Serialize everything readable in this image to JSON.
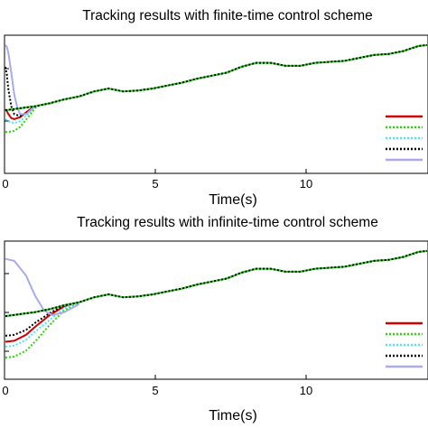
{
  "chart_data": [
    {
      "type": "line",
      "title": "Tracking results with finite-time control scheme",
      "xlabel": "Time(s)",
      "ylabel": "",
      "xlim": [
        0,
        14.3
      ],
      "ylim": [
        -0.3,
        1.1
      ],
      "xticks": [
        "0",
        "5",
        "10"
      ],
      "grid": false,
      "legend": "right",
      "reference": {
        "x": [
          0,
          0.5,
          1,
          1.5,
          2,
          2.5,
          3,
          3.5,
          4,
          4.5,
          5,
          5.5,
          6,
          6.5,
          7,
          7.5,
          8,
          8.5,
          9,
          9.5,
          10,
          10.5,
          11,
          11.5,
          12,
          12.5,
          13,
          13.5,
          14,
          14.3
        ],
        "y": [
          0.34,
          0.36,
          0.38,
          0.41,
          0.45,
          0.48,
          0.53,
          0.56,
          0.53,
          0.54,
          0.56,
          0.59,
          0.62,
          0.66,
          0.69,
          0.72,
          0.78,
          0.82,
          0.82,
          0.79,
          0.79,
          0.82,
          0.83,
          0.84,
          0.87,
          0.9,
          0.91,
          0.94,
          0.99,
          1.0
        ]
      },
      "series": [
        {
          "color": "#d40000",
          "dash": "solid",
          "x": [
            0,
            0.05,
            0.1,
            0.2,
            0.3,
            0.5,
            0.8,
            1.0
          ],
          "y": [
            0.35,
            0.33,
            0.3,
            0.26,
            0.25,
            0.27,
            0.34,
            0.38
          ]
        },
        {
          "color": "#22dd00",
          "dash": "dot",
          "x": [
            0,
            0.1,
            0.3,
            0.5,
            0.8,
            1.0,
            1.2
          ],
          "y": [
            0.12,
            0.12,
            0.13,
            0.17,
            0.28,
            0.36,
            0.4
          ]
        },
        {
          "color": "#44e8ff",
          "dash": "dot",
          "x": [
            0,
            0.1,
            0.3,
            0.5,
            0.8,
            1.0
          ],
          "y": [
            0.25,
            0.23,
            0.21,
            0.23,
            0.31,
            0.38
          ]
        },
        {
          "color": "#000000",
          "dash": "dot",
          "x": [
            0,
            0.05,
            0.1,
            0.2,
            0.3,
            0.5,
            0.8,
            1.0
          ],
          "y": [
            0.78,
            0.7,
            0.55,
            0.38,
            0.3,
            0.28,
            0.33,
            0.38
          ]
        },
        {
          "color": "#aaaaee",
          "dash": "solid",
          "x": [
            0,
            0.05,
            0.1,
            0.2,
            0.3,
            0.4,
            0.5,
            0.7,
            1.0
          ],
          "y": [
            1.0,
            0.98,
            0.92,
            0.72,
            0.5,
            0.37,
            0.3,
            0.3,
            0.38
          ]
        }
      ]
    },
    {
      "type": "line",
      "title": "Tracking results with infinite-time control scheme",
      "xlabel": "Time(s)",
      "ylabel": "",
      "xlim": [
        0,
        14.3
      ],
      "ylim": [
        -0.3,
        1.1
      ],
      "xticks": [
        "0",
        "5",
        "10"
      ],
      "grid": false,
      "legend": "right",
      "reference": {
        "x": [
          0,
          0.5,
          1,
          1.5,
          2,
          2.5,
          3,
          3.5,
          4,
          4.5,
          5,
          5.5,
          6,
          6.5,
          7,
          7.5,
          8,
          8.5,
          9,
          9.5,
          10,
          10.5,
          11,
          11.5,
          12,
          12.5,
          13,
          13.5,
          14,
          14.3
        ],
        "y": [
          0.34,
          0.36,
          0.38,
          0.41,
          0.45,
          0.48,
          0.53,
          0.56,
          0.53,
          0.54,
          0.56,
          0.59,
          0.62,
          0.66,
          0.69,
          0.72,
          0.78,
          0.82,
          0.82,
          0.79,
          0.79,
          0.82,
          0.83,
          0.84,
          0.87,
          0.9,
          0.91,
          0.94,
          0.99,
          1.0
        ]
      },
      "series": [
        {
          "color": "#d40000",
          "dash": "solid",
          "x": [
            0,
            0.3,
            0.7,
            1.0,
            1.5,
            2.0,
            2.5
          ],
          "y": [
            0.08,
            0.09,
            0.15,
            0.23,
            0.35,
            0.44,
            0.48
          ]
        },
        {
          "color": "#22dd00",
          "dash": "dot",
          "x": [
            0,
            0.3,
            0.7,
            1.0,
            1.5,
            2.0,
            2.5
          ],
          "y": [
            -0.08,
            -0.07,
            -0.01,
            0.08,
            0.25,
            0.4,
            0.47
          ]
        },
        {
          "color": "#44e8ff",
          "dash": "dot",
          "x": [
            0,
            0.3,
            0.7,
            1.0,
            1.5,
            2.0,
            2.5
          ],
          "y": [
            0.03,
            0.04,
            0.1,
            0.18,
            0.3,
            0.42,
            0.48
          ]
        },
        {
          "color": "#000000",
          "dash": "dot",
          "x": [
            0,
            0.3,
            0.7,
            1.0,
            1.5,
            2.0,
            2.5
          ],
          "y": [
            0.14,
            0.15,
            0.2,
            0.27,
            0.37,
            0.45,
            0.48
          ]
        },
        {
          "color": "#aaaaee",
          "dash": "solid",
          "x": [
            0,
            0.3,
            0.7,
            1.0,
            1.3,
            1.6,
            2.0,
            2.5
          ],
          "y": [
            0.92,
            0.9,
            0.75,
            0.55,
            0.4,
            0.35,
            0.38,
            0.46
          ]
        }
      ]
    }
  ]
}
